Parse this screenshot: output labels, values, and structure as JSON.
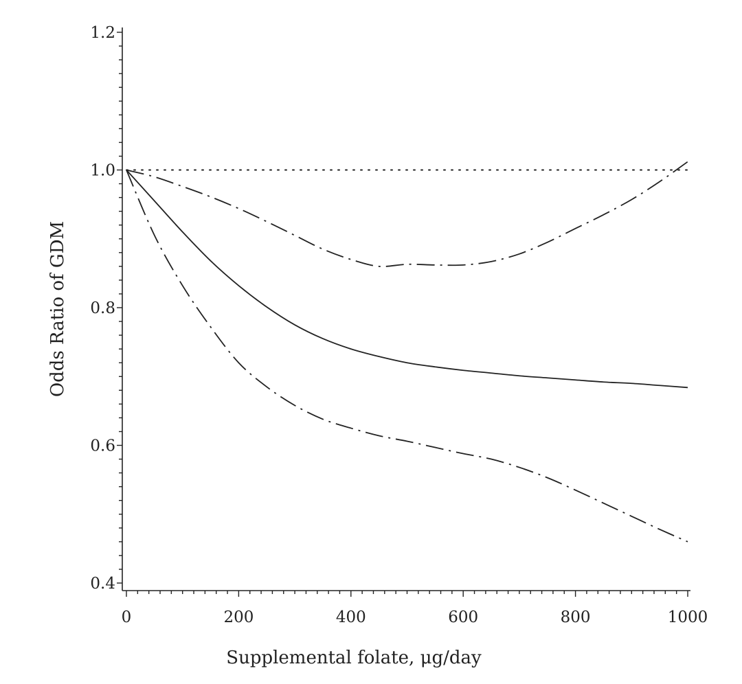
{
  "chart_data": {
    "type": "line",
    "xlabel": "Supplemental folate, μg/day",
    "ylabel": "Odds Ratio of GDM",
    "xlim": [
      0,
      1000
    ],
    "ylim": [
      0.4,
      1.2
    ],
    "x_ticks": [
      0,
      200,
      400,
      600,
      800,
      1000
    ],
    "x_tick_labels": [
      "0",
      "200",
      "400",
      "600",
      "800",
      "1000"
    ],
    "y_ticks": [
      0.4,
      0.6,
      0.8,
      1.0,
      1.2
    ],
    "y_tick_labels": [
      "0.4",
      "0.6",
      "0.8",
      "1.0",
      "1.2"
    ],
    "grid": false,
    "legend": "none",
    "colors": {
      "line": "#222222"
    },
    "series": [
      {
        "style": "solid",
        "x": [
          0,
          50,
          100,
          150,
          200,
          250,
          300,
          350,
          400,
          450,
          500,
          550,
          600,
          650,
          700,
          750,
          800,
          850,
          900,
          950,
          1000
        ],
        "y": [
          1.0,
          0.955,
          0.91,
          0.868,
          0.832,
          0.801,
          0.775,
          0.755,
          0.74,
          0.729,
          0.72,
          0.714,
          0.709,
          0.705,
          0.701,
          0.698,
          0.695,
          0.692,
          0.69,
          0.687,
          0.684
        ]
      },
      {
        "style": "dash-dot-dot",
        "x": [
          0,
          50,
          100,
          150,
          200,
          250,
          300,
          350,
          400,
          450,
          500,
          550,
          600,
          650,
          700,
          750,
          800,
          850,
          900,
          950,
          1000
        ],
        "y": [
          1.0,
          0.99,
          0.976,
          0.961,
          0.944,
          0.925,
          0.905,
          0.885,
          0.87,
          0.86,
          0.863,
          0.862,
          0.862,
          0.867,
          0.878,
          0.895,
          0.915,
          0.935,
          0.957,
          0.983,
          1.012
        ]
      },
      {
        "style": "dash-dot-dot",
        "x": [
          0,
          50,
          100,
          150,
          200,
          250,
          300,
          350,
          400,
          450,
          500,
          550,
          600,
          650,
          700,
          750,
          800,
          850,
          900,
          950,
          1000
        ],
        "y": [
          1.0,
          0.905,
          0.832,
          0.772,
          0.72,
          0.685,
          0.658,
          0.638,
          0.625,
          0.614,
          0.606,
          0.597,
          0.588,
          0.58,
          0.568,
          0.553,
          0.535,
          0.516,
          0.497,
          0.478,
          0.46
        ]
      },
      {
        "style": "dotted",
        "x": [
          0,
          1000
        ],
        "y": [
          1.0,
          1.0
        ]
      }
    ]
  }
}
